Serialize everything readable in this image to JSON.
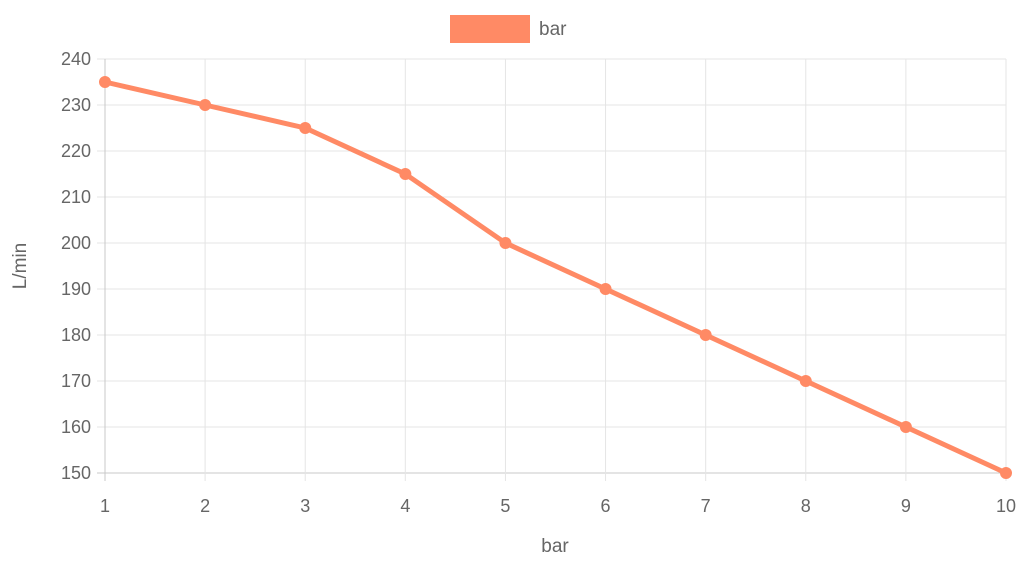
{
  "chart_data": {
    "type": "line",
    "x": [
      1,
      2,
      3,
      4,
      5,
      6,
      7,
      8,
      9,
      10
    ],
    "series": [
      {
        "name": "bar",
        "values": [
          235,
          230,
          225,
          215,
          200,
          190,
          180,
          170,
          160,
          150
        ],
        "color": "#ff8a65"
      }
    ],
    "xlabel": "bar",
    "ylabel": "L/min",
    "xlim": [
      1,
      10
    ],
    "ylim": [
      150,
      240
    ],
    "yticks": [
      150,
      160,
      170,
      180,
      190,
      200,
      210,
      220,
      230,
      240
    ],
    "xticks": [
      1,
      2,
      3,
      4,
      5,
      6,
      7,
      8,
      9,
      10
    ],
    "grid": true,
    "legend_position": "top-center"
  }
}
